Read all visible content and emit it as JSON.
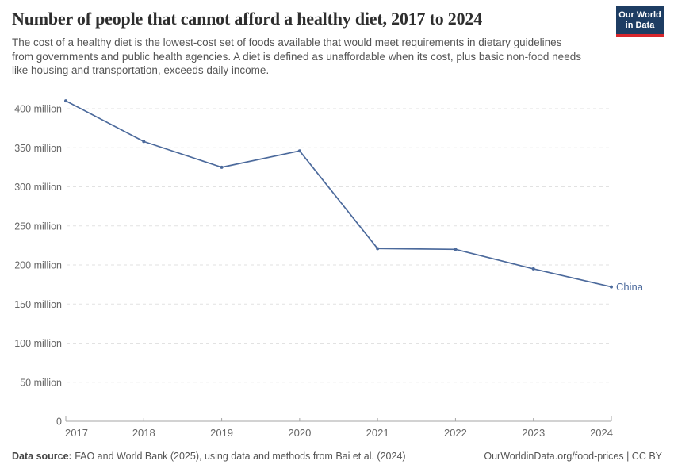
{
  "header": {
    "title": "Number of people that cannot afford a healthy diet, 2017 to 2024",
    "subtitle": "The cost of a healthy diet is the lowest-cost set of foods available that would meet requirements in dietary guidelines from governments and public health agencies. A diet is defined as unaffordable when its cost, plus basic non-food needs like housing and transportation, exceeds daily income."
  },
  "logo": {
    "line1": "Our World",
    "line2": "in Data",
    "bg_color": "#1d3d63",
    "accent_color": "#d8262c"
  },
  "chart_data": {
    "type": "line",
    "title": "Number of people that cannot afford a healthy diet, 2017 to 2024",
    "x": [
      2017,
      2018,
      2019,
      2020,
      2021,
      2022,
      2023,
      2024
    ],
    "xticklabels": [
      "2017",
      "2018",
      "2019",
      "2020",
      "2021",
      "2022",
      "2023",
      "2024"
    ],
    "series": [
      {
        "name": "China",
        "values": [
          410,
          358,
          325,
          346,
          221,
          220,
          195,
          172
        ],
        "color": "#4C6A9C"
      }
    ],
    "unit": "million people",
    "ylim": [
      0,
      420
    ],
    "yticks": [
      {
        "value": 0,
        "label": "0"
      },
      {
        "value": 50,
        "label": "50 million"
      },
      {
        "value": 100,
        "label": "100 million"
      },
      {
        "value": 150,
        "label": "150 million"
      },
      {
        "value": 200,
        "label": "200 million"
      },
      {
        "value": 250,
        "label": "250 million"
      },
      {
        "value": 300,
        "label": "300 million"
      },
      {
        "value": 350,
        "label": "350 million"
      },
      {
        "value": 400,
        "label": "400 million"
      }
    ],
    "grid": "horizontal-dashed",
    "legend_position": "end-of-line-label",
    "colors": {
      "gridline": "#e2e2e2",
      "axis": "#a5a5a5",
      "tick_text": "#666666"
    }
  },
  "footer": {
    "source_label": "Data source:",
    "source_text": " FAO and World Bank (2025), using data and methods from Bai et al. (2024)",
    "link": "OurWorldinData.org/food-prices",
    "separator": " | ",
    "license": "CC BY"
  }
}
